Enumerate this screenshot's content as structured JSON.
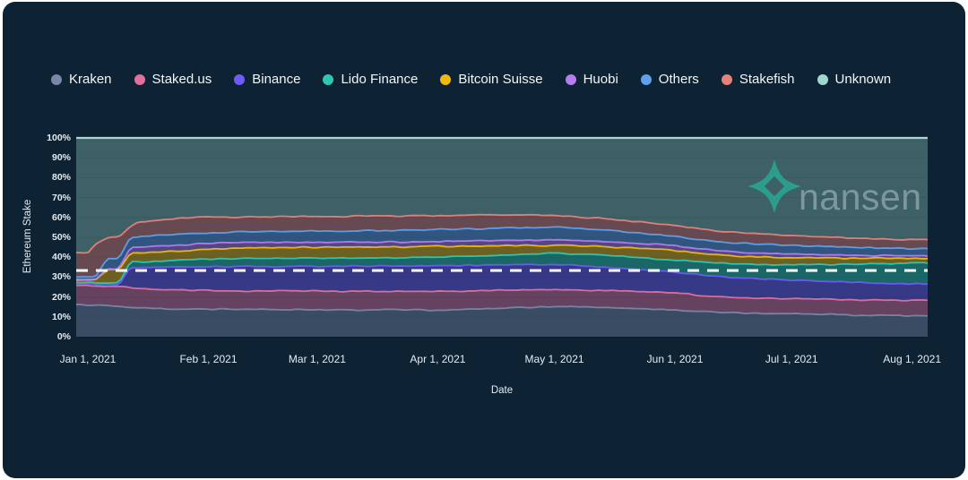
{
  "page": {
    "card_background": "#0d2232",
    "page_background": "#ffffff"
  },
  "legend": {
    "items": [
      {
        "label": "Kraken",
        "color": "#7a87a8"
      },
      {
        "label": "Staked.us",
        "color": "#e0709d"
      },
      {
        "label": "Binance",
        "color": "#6f5bf7"
      },
      {
        "label": "Lido Finance",
        "color": "#2fc7b2"
      },
      {
        "label": "Bitcoin Suisse",
        "color": "#f0b90f"
      },
      {
        "label": "Huobi",
        "color": "#b47df0"
      },
      {
        "label": "Others",
        "color": "#61a0ea"
      },
      {
        "label": "Stakefish",
        "color": "#e5837b"
      },
      {
        "label": "Unknown",
        "color": "#9ed8cc"
      }
    ]
  },
  "chart": {
    "y_axis": {
      "title": "Ethereum Stake",
      "ticks": [
        "0%",
        "10%",
        "20%",
        "30%",
        "40%",
        "50%",
        "60%",
        "70%",
        "80%",
        "90%",
        "100%"
      ]
    },
    "x_axis": {
      "title": "Date",
      "ticks": [
        {
          "label": "Jan 1, 2021",
          "day": 3
        },
        {
          "label": "Feb 1, 2021",
          "day": 34
        },
        {
          "label": "Mar 1, 2021",
          "day": 62
        },
        {
          "label": "Apr 1, 2021",
          "day": 93
        },
        {
          "label": "May 1, 2021",
          "day": 123
        },
        {
          "label": "Jun 1, 2021",
          "day": 154
        },
        {
          "label": "Jul 1, 2021",
          "day": 184
        },
        {
          "label": "Aug 1, 2021",
          "day": 215
        }
      ]
    },
    "threshold_line": {
      "value_percent": 33.3,
      "style": "dashed",
      "color": "#ffffff"
    },
    "watermark": {
      "text": "nansen",
      "icon_color": "#2ba08e"
    }
  },
  "chart_data": {
    "type": "area",
    "stacked": true,
    "unit": "percent of Ethereum stake",
    "ylim": [
      0,
      100
    ],
    "ylabel": "Ethereum Stake",
    "xlabel": "Date",
    "legend_position": "top",
    "grid": true,
    "x_domain_days": 219,
    "dates": [
      "Dec 29, 2020",
      "Jan 1, 2021",
      "Jan 3, 2021",
      "Jan 6, 2021",
      "Jan 9, 2021",
      "Jan 12, 2021",
      "Jan 14, 2021",
      "Jan 19, 2021",
      "Jan 27, 2021",
      "Feb 3, 2021",
      "Feb 14, 2021",
      "Feb 25, 2021",
      "Mar 8, 2021",
      "Mar 19, 2021",
      "Mar 30, 2021",
      "Apr 10, 2021",
      "Apr 21, 2021",
      "May 2, 2021",
      "May 13, 2021",
      "May 22, 2021",
      "May 31, 2021",
      "Jun 9, 2021",
      "Jun 17, 2021",
      "Jun 26, 2021",
      "Jul 4, 2021",
      "Jul 15, 2021",
      "Jul 24, 2021",
      "Aug 3, 2021"
    ],
    "days": [
      0,
      3,
      5,
      8,
      11,
      14,
      16,
      21,
      29,
      36,
      47,
      58,
      69,
      80,
      91,
      102,
      113,
      124,
      135,
      144,
      153,
      162,
      170,
      179,
      187,
      198,
      207,
      218
    ],
    "series": [
      {
        "name": "Kraken",
        "color": "#7a87a8",
        "values": [
          16.2,
          16.0,
          16.0,
          15.8,
          15.5,
          14.8,
          14.5,
          14.2,
          13.9,
          13.8,
          13.9,
          13.6,
          13.5,
          13.6,
          13.4,
          13.8,
          14.6,
          15.2,
          14.7,
          14.2,
          13.6,
          12.6,
          12.0,
          11.7,
          11.4,
          11.0,
          10.7,
          10.4
        ]
      },
      {
        "name": "Staked.us",
        "color": "#e0709d",
        "values": [
          9.6,
          9.8,
          9.7,
          9.6,
          9.6,
          9.8,
          9.8,
          9.7,
          9.5,
          9.3,
          9.1,
          9.4,
          9.3,
          9.2,
          9.5,
          9.2,
          8.8,
          8.5,
          8.6,
          8.6,
          8.5,
          8.0,
          7.6,
          7.4,
          7.6,
          7.5,
          7.6,
          7.9
        ]
      },
      {
        "name": "Binance",
        "color": "#6f5bf7",
        "values": [
          0.7,
          0.7,
          0.8,
          0.8,
          0.9,
          10.2,
          10.5,
          11.0,
          11.7,
          12.2,
          12.4,
          12.5,
          12.7,
          12.7,
          12.8,
          12.9,
          12.8,
          12.5,
          11.8,
          11.0,
          10.5,
          10.2,
          10.0,
          9.7,
          9.4,
          9.0,
          8.5,
          8.2
        ]
      },
      {
        "name": "Lido Finance",
        "color": "#2fc7b2",
        "values": [
          0.7,
          0.7,
          0.7,
          0.7,
          0.8,
          2.8,
          2.8,
          3.0,
          3.7,
          3.9,
          4.0,
          4.0,
          4.0,
          4.1,
          4.2,
          4.4,
          5.0,
          5.8,
          6.0,
          6.1,
          6.0,
          6.7,
          7.0,
          7.3,
          7.7,
          9.0,
          9.9,
          10.5
        ]
      },
      {
        "name": "Bitcoin Suisse",
        "color": "#f0b90f",
        "values": [
          1.2,
          1.2,
          1.3,
          6.9,
          6.9,
          4.4,
          4.5,
          4.6,
          4.6,
          5.0,
          5.3,
          5.4,
          5.6,
          5.5,
          5.5,
          5.3,
          4.6,
          4.0,
          4.2,
          4.6,
          5.0,
          4.3,
          4.0,
          3.9,
          3.7,
          3.0,
          2.7,
          2.3
        ]
      },
      {
        "name": "Huobi",
        "color": "#b47df0",
        "values": [
          0.5,
          0.5,
          0.5,
          0.5,
          0.5,
          3.0,
          3.0,
          3.0,
          3.0,
          2.9,
          2.8,
          2.6,
          2.5,
          2.6,
          2.5,
          2.6,
          2.7,
          2.7,
          2.5,
          2.4,
          2.4,
          2.1,
          2.0,
          1.8,
          1.7,
          1.5,
          1.4,
          1.3
        ]
      },
      {
        "name": "Others",
        "color": "#61a0ea",
        "values": [
          1.1,
          1.1,
          1.1,
          5.3,
          5.5,
          5.0,
          5.1,
          5.4,
          5.5,
          5.3,
          5.3,
          5.6,
          5.5,
          5.7,
          5.9,
          6.1,
          6.3,
          6.3,
          6.0,
          5.4,
          4.7,
          4.6,
          4.5,
          4.5,
          4.4,
          4.1,
          3.9,
          3.7
        ]
      },
      {
        "name": "Stakefish",
        "color": "#e5837b",
        "values": [
          12.3,
          12.4,
          16.5,
          10.1,
          10.4,
          5.5,
          7.3,
          7.6,
          8.1,
          7.6,
          7.4,
          7.4,
          7.4,
          7.3,
          7.0,
          6.9,
          6.5,
          5.7,
          5.7,
          5.5,
          5.5,
          5.4,
          5.4,
          4.9,
          4.6,
          4.6,
          4.5,
          4.5
        ]
      },
      {
        "name": "Unknown",
        "color": "#9ed8cc",
        "values": [
          57.7,
          57.6,
          53.4,
          50.3,
          49.9,
          44.5,
          42.5,
          41.5,
          40.0,
          40.0,
          39.8,
          39.5,
          39.5,
          39.3,
          39.2,
          38.8,
          38.7,
          39.3,
          40.5,
          42.2,
          43.8,
          46.1,
          47.5,
          48.8,
          49.5,
          50.3,
          50.8,
          51.2
        ]
      }
    ],
    "threshold_percent": 33.3
  }
}
